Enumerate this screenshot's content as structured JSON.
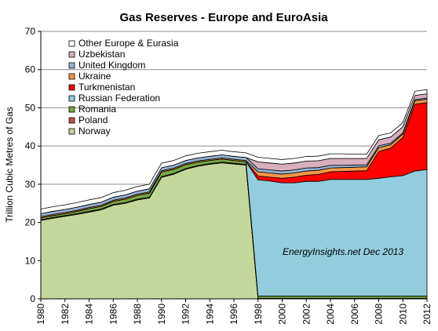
{
  "chart_data": {
    "type": "area",
    "stacked": true,
    "title": "Gas Reserves - Europe and EuroAsia",
    "ylabel": "Trillion Cubic Metres of Gas",
    "xlabel": "",
    "ylim": [
      0,
      70
    ],
    "yticks": [
      0,
      10,
      20,
      30,
      40,
      50,
      60,
      70
    ],
    "xlim": [
      1980,
      2012
    ],
    "xticks": [
      "1980",
      "1982",
      "1984",
      "1986",
      "1988",
      "1990",
      "1992",
      "1994",
      "1996",
      "1998",
      "2000",
      "2002",
      "2004",
      "2006",
      "2008",
      "2010",
      "2012"
    ],
    "annotation": "EnergyInsights.net  Dec 2013",
    "legend_position": "top-left",
    "grid": "horizontal",
    "x": [
      1980,
      1981,
      1982,
      1983,
      1984,
      1985,
      1986,
      1987,
      1988,
      1989,
      1990,
      1991,
      1992,
      1993,
      1994,
      1995,
      1996,
      1997,
      1998,
      1999,
      2000,
      2001,
      2002,
      2003,
      2004,
      2005,
      2006,
      2007,
      2008,
      2009,
      2010,
      2011,
      2012
    ],
    "series": [
      {
        "name": "Norway",
        "color": "#c4d79b",
        "values": [
          20.5,
          21.1,
          21.6,
          22.1,
          22.7,
          23.3,
          24.5,
          25.0,
          25.9,
          26.4,
          31.8,
          32.6,
          33.9,
          34.7,
          35.2,
          35.6,
          35.3,
          35.0,
          0,
          0,
          0,
          0,
          0,
          0,
          0,
          0,
          0,
          0,
          0,
          0,
          0,
          0,
          0
        ]
      },
      {
        "name": "Poland",
        "color": "#c0504d",
        "values": [
          0.2,
          0.2,
          0.2,
          0.2,
          0.2,
          0.2,
          0.2,
          0.2,
          0.2,
          0.2,
          0.2,
          0.2,
          0.2,
          0.2,
          0.2,
          0.2,
          0.2,
          0.2,
          0.15,
          0.15,
          0.15,
          0.15,
          0.15,
          0.15,
          0.15,
          0.15,
          0.15,
          0.15,
          0.15,
          0.15,
          0.15,
          0.15,
          0.15
        ]
      },
      {
        "name": "Romania",
        "color": "#77a842",
        "values": [
          0.5,
          0.5,
          0.5,
          0.6,
          0.7,
          0.7,
          0.8,
          0.9,
          1.0,
          1.1,
          1.2,
          1.1,
          1.0,
          0.9,
          0.8,
          0.8,
          0.7,
          0.7,
          0.6,
          0.6,
          0.6,
          0.6,
          0.6,
          0.6,
          0.6,
          0.6,
          0.6,
          0.6,
          0.6,
          0.6,
          0.6,
          0.6,
          0.6
        ]
      },
      {
        "name": "Russian Federation",
        "color": "#93cddd",
        "values": [
          0,
          0,
          0,
          0,
          0,
          0,
          0,
          0,
          0,
          0,
          0,
          0,
          0,
          0,
          0,
          0,
          0,
          0,
          30.4,
          30.1,
          29.6,
          29.6,
          30.0,
          30.0,
          30.5,
          30.5,
          30.5,
          30.5,
          30.8,
          31.2,
          31.5,
          32.7,
          33.1
        ]
      },
      {
        "name": "Turkmenistan",
        "color": "#ff0000",
        "values": [
          0,
          0,
          0,
          0,
          0,
          0,
          0,
          0,
          0,
          0,
          0,
          0,
          0,
          0,
          0,
          0,
          0,
          0,
          1.0,
          1.0,
          1.2,
          1.5,
          1.6,
          1.8,
          2.0,
          2.1,
          2.2,
          2.3,
          7.0,
          7.5,
          10.0,
          17.5,
          17.5
        ]
      },
      {
        "name": "Ukraine",
        "color": "#f79646",
        "values": [
          0.3,
          0.3,
          0.3,
          0.3,
          0.3,
          0.3,
          0.3,
          0.3,
          0.3,
          0.3,
          0.3,
          0.3,
          0.3,
          0.3,
          0.3,
          0.3,
          0.3,
          0.3,
          1.1,
          1.1,
          1.1,
          1.1,
          1.1,
          1.1,
          1.0,
          1.0,
          1.0,
          1.0,
          1.0,
          0.9,
          0.9,
          0.9,
          0.9
        ]
      },
      {
        "name": "United Kingdom",
        "color": "#95b3d7",
        "values": [
          0.8,
          0.8,
          0.8,
          0.8,
          0.8,
          0.8,
          0.8,
          0.8,
          0.8,
          0.8,
          0.8,
          0.8,
          0.8,
          0.8,
          0.8,
          0.8,
          0.8,
          0.8,
          0.8,
          0.8,
          0.8,
          0.8,
          0.8,
          0.7,
          0.7,
          0.6,
          0.6,
          0.5,
          0.5,
          0.4,
          0.3,
          0.3,
          0.3
        ]
      },
      {
        "name": "Uzbekistan",
        "color": "#d9aebe",
        "values": [
          0,
          0,
          0,
          0,
          0,
          0,
          0,
          0,
          0,
          0,
          0,
          0,
          0,
          0,
          0,
          0,
          0,
          0,
          1.8,
          1.8,
          1.8,
          1.8,
          1.8,
          1.8,
          1.8,
          1.8,
          1.7,
          1.7,
          1.6,
          1.6,
          1.6,
          1.1,
          1.1
        ]
      },
      {
        "name": "Other Europe & Eurasia",
        "color": "#ffffff",
        "values": [
          1.2,
          1.2,
          1.2,
          1.2,
          1.2,
          1.2,
          1.2,
          1.2,
          1.2,
          1.2,
          1.2,
          1.2,
          1.2,
          1.2,
          1.2,
          1.2,
          1.2,
          1.2,
          1.2,
          1.2,
          1.2,
          1.2,
          1.2,
          1.2,
          1.2,
          1.2,
          1.1,
          1.1,
          1.1,
          1.1,
          1.1,
          1.1,
          1.1
        ]
      }
    ]
  }
}
